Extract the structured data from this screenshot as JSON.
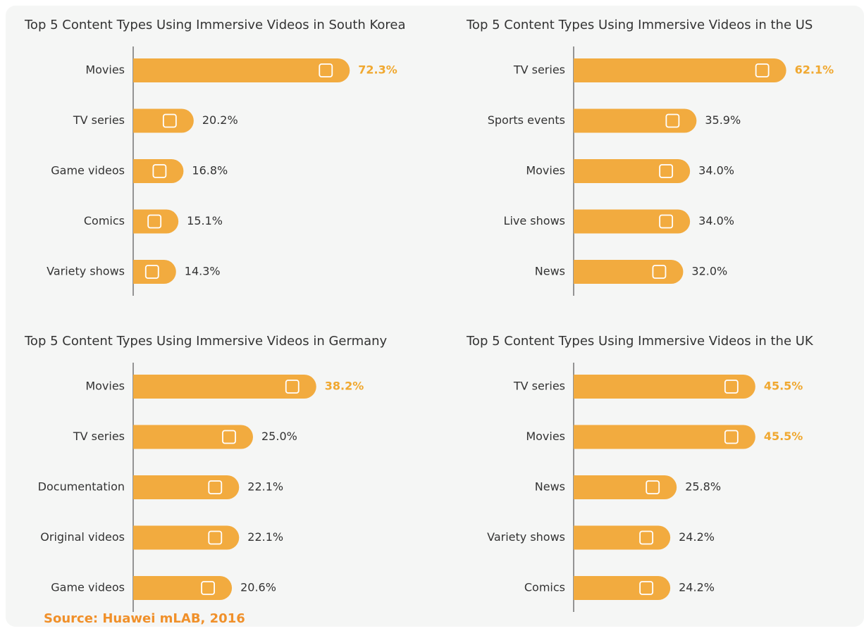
{
  "chart_data": [
    {
      "type": "bar",
      "orientation": "horizontal",
      "title": "Top 5 Content Types Using Immersive Videos in South Korea",
      "categories": [
        "Movies",
        "TV series",
        "Game videos",
        "Comics",
        "Variety shows"
      ],
      "values": [
        72.3,
        20.2,
        16.8,
        15.1,
        14.3
      ],
      "value_labels": [
        "72.3%",
        "20.2%",
        "16.8%",
        "15.1%",
        "14.3%"
      ],
      "label_colors": [
        "#f0a830",
        "#333333",
        "#333333",
        "#333333",
        "#333333"
      ],
      "label_bold": [
        true,
        false,
        false,
        false,
        false
      ],
      "color": "#f2ab3f",
      "xlim": [
        0,
        80
      ]
    },
    {
      "type": "bar",
      "orientation": "horizontal",
      "title": "Top 5 Content Types Using Immersive Videos in the US",
      "categories": [
        "TV series",
        "Sports events",
        "Movies",
        "Live shows",
        "News"
      ],
      "values": [
        62.1,
        35.9,
        34.0,
        34.0,
        32.0
      ],
      "value_labels": [
        "62.1%",
        "35.9%",
        "34.0%",
        "34.0%",
        "32.0%"
      ],
      "label_colors": [
        "#f0a830",
        "#333333",
        "#333333",
        "#333333",
        "#333333"
      ],
      "label_bold": [
        true,
        false,
        false,
        false,
        false
      ],
      "color": "#f2ab3f",
      "xlim": [
        0,
        70
      ]
    },
    {
      "type": "bar",
      "orientation": "horizontal",
      "title": "Top 5 Content Types Using Immersive Videos in Germany",
      "categories": [
        "Movies",
        "TV series",
        "Documentation",
        "Original videos",
        "Game videos"
      ],
      "values": [
        38.2,
        25.0,
        22.1,
        22.1,
        20.6
      ],
      "value_labels": [
        "38.2%",
        "25.0%",
        "22.1%",
        "22.1%",
        "20.6%"
      ],
      "label_colors": [
        "#f0a830",
        "#333333",
        "#333333",
        "#333333",
        "#333333"
      ],
      "label_bold": [
        true,
        false,
        false,
        false,
        false
      ],
      "color": "#f2ab3f",
      "xlim": [
        0,
        50
      ]
    },
    {
      "type": "bar",
      "orientation": "horizontal",
      "title": "Top 5 Content Types Using Immersive Videos in the UK",
      "categories": [
        "TV series",
        "Movies",
        "News",
        "Variety shows",
        "Comics"
      ],
      "values": [
        45.5,
        45.5,
        25.8,
        24.2,
        24.2
      ],
      "value_labels": [
        "45.5%",
        "45.5%",
        "25.8%",
        "24.2%",
        "24.2%"
      ],
      "label_colors": [
        "#f0a830",
        "#f0a830",
        "#333333",
        "#333333",
        "#333333"
      ],
      "label_bold": [
        true,
        true,
        false,
        false,
        false
      ],
      "color": "#f2ab3f",
      "xlim": [
        0,
        60
      ]
    }
  ],
  "source": "Source: Huawei mLAB, 2016"
}
